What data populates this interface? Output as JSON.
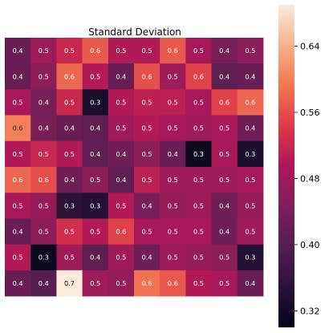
{
  "chart_data": {
    "type": "heatmap",
    "title": "Standard Deviation",
    "rows": 10,
    "cols": 10,
    "values": [
      [
        0.4,
        0.5,
        0.5,
        0.6,
        0.5,
        0.5,
        0.6,
        0.5,
        0.4,
        0.5
      ],
      [
        0.4,
        0.5,
        0.6,
        0.5,
        0.4,
        0.6,
        0.5,
        0.6,
        0.4,
        0.4
      ],
      [
        0.5,
        0.4,
        0.5,
        0.3,
        0.5,
        0.5,
        0.5,
        0.5,
        0.6,
        0.6
      ],
      [
        0.6,
        0.4,
        0.4,
        0.4,
        0.5,
        0.5,
        0.5,
        0.5,
        0.5,
        0.4
      ],
      [
        0.5,
        0.5,
        0.5,
        0.4,
        0.4,
        0.5,
        0.4,
        0.3,
        0.5,
        0.3
      ],
      [
        0.6,
        0.6,
        0.4,
        0.5,
        0.4,
        0.5,
        0.5,
        0.5,
        0.5,
        0.5
      ],
      [
        0.5,
        0.5,
        0.3,
        0.3,
        0.5,
        0.4,
        0.5,
        0.5,
        0.4,
        0.5
      ],
      [
        0.4,
        0.5,
        0.5,
        0.5,
        0.6,
        0.5,
        0.5,
        0.5,
        0.4,
        0.5
      ],
      [
        0.5,
        0.3,
        0.5,
        0.4,
        0.5,
        0.4,
        0.5,
        0.5,
        0.5,
        0.3
      ],
      [
        0.4,
        0.4,
        0.7,
        0.5,
        0.5,
        0.6,
        0.6,
        0.5,
        0.5,
        0.4
      ]
    ],
    "underlying_values": [
      [
        0.42,
        0.48,
        0.52,
        0.57,
        0.5,
        0.5,
        0.57,
        0.49,
        0.44,
        0.46
      ],
      [
        0.42,
        0.46,
        0.58,
        0.5,
        0.42,
        0.56,
        0.48,
        0.55,
        0.41,
        0.42
      ],
      [
        0.49,
        0.44,
        0.52,
        0.33,
        0.5,
        0.51,
        0.51,
        0.49,
        0.55,
        0.58
      ],
      [
        0.6,
        0.44,
        0.42,
        0.41,
        0.48,
        0.5,
        0.49,
        0.48,
        0.49,
        0.43
      ],
      [
        0.5,
        0.52,
        0.5,
        0.41,
        0.43,
        0.46,
        0.42,
        0.31,
        0.49,
        0.33
      ],
      [
        0.58,
        0.56,
        0.43,
        0.46,
        0.41,
        0.51,
        0.48,
        0.48,
        0.48,
        0.49
      ],
      [
        0.49,
        0.47,
        0.35,
        0.34,
        0.5,
        0.44,
        0.47,
        0.48,
        0.43,
        0.47
      ],
      [
        0.42,
        0.46,
        0.53,
        0.5,
        0.55,
        0.49,
        0.49,
        0.49,
        0.43,
        0.48
      ],
      [
        0.5,
        0.31,
        0.48,
        0.41,
        0.48,
        0.43,
        0.48,
        0.47,
        0.46,
        0.34
      ],
      [
        0.42,
        0.4,
        0.69,
        0.48,
        0.47,
        0.59,
        0.57,
        0.5,
        0.49,
        0.42
      ]
    ],
    "colorbar": {
      "colormap": "rocket",
      "range": [
        0.3,
        0.69
      ],
      "ticks": [
        0.32,
        0.4,
        0.48,
        0.56,
        0.64
      ],
      "tick_labels": [
        "0.32",
        "0.40",
        "0.48",
        "0.56",
        "0.64"
      ]
    },
    "xlabel": "",
    "ylabel": "",
    "grid": false
  }
}
